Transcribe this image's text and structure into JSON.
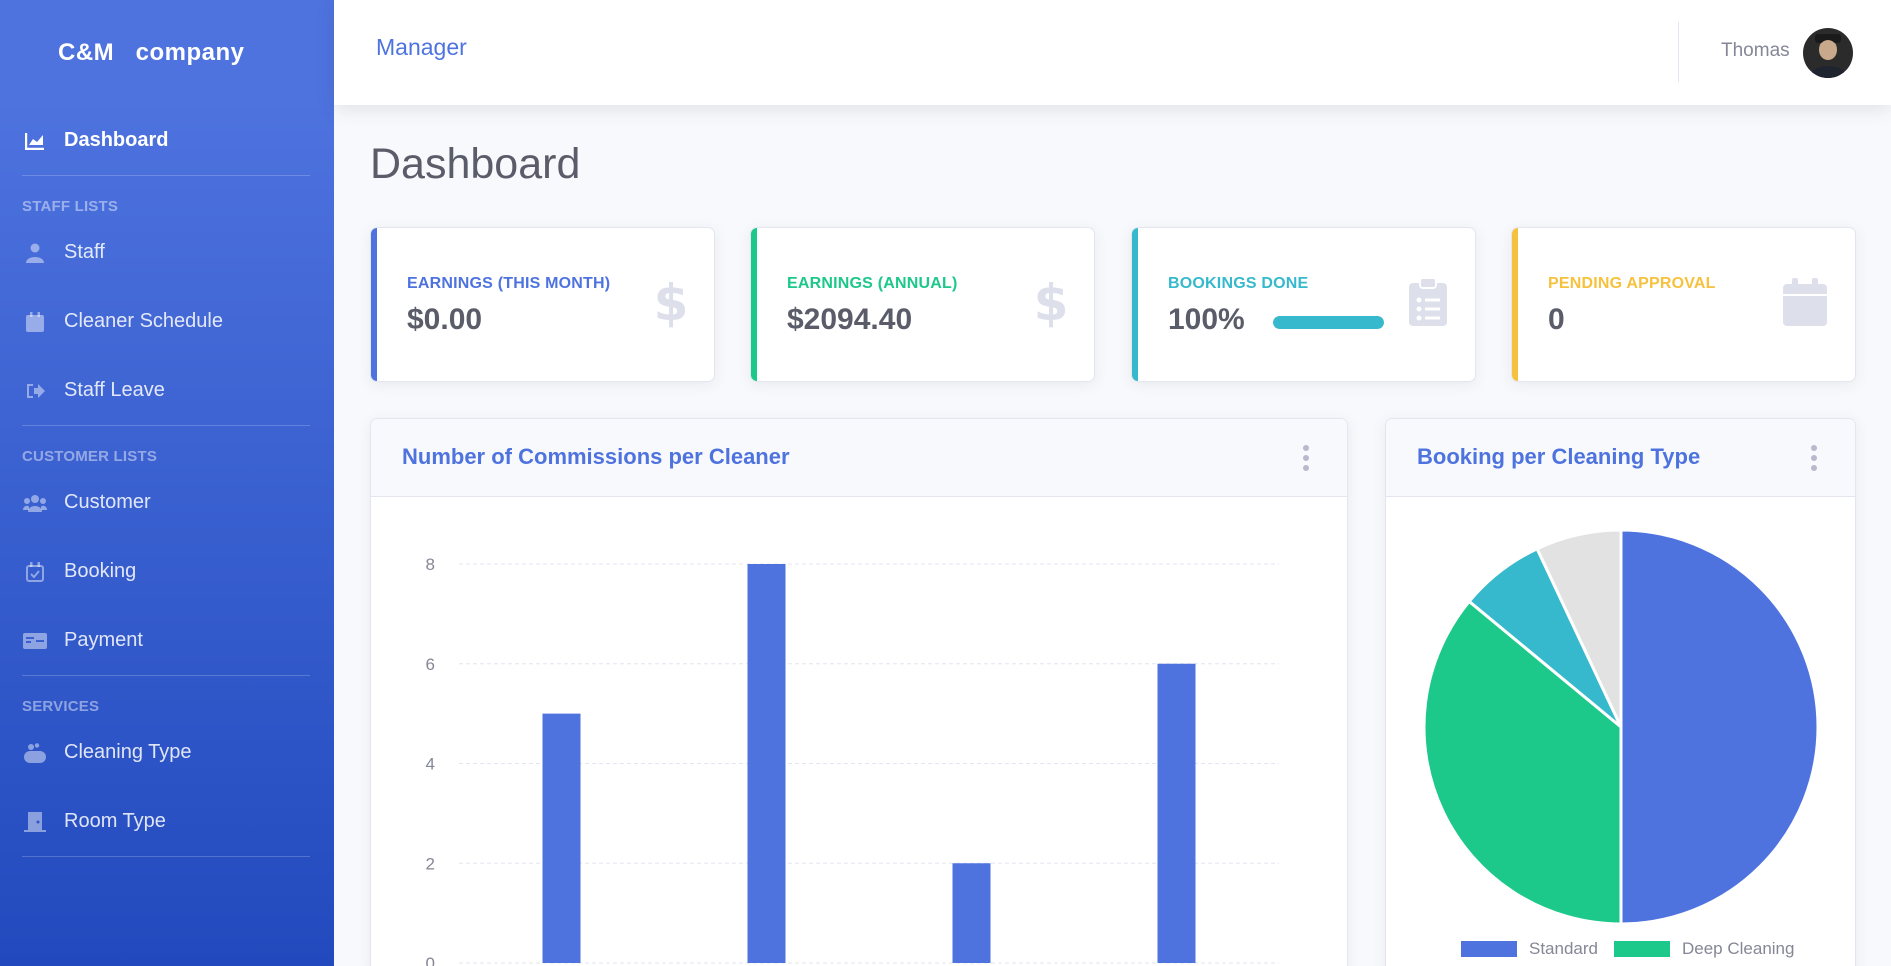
{
  "brand": {
    "name": "C&M   company"
  },
  "sidebar": {
    "dashboard": "Dashboard",
    "sections": [
      {
        "heading": "STAFF LISTS",
        "items": [
          {
            "label": "Staff",
            "icon": "user-tie-icon"
          },
          {
            "label": "Cleaner Schedule",
            "icon": "calendar-icon"
          },
          {
            "label": "Staff Leave",
            "icon": "sign-out-icon"
          }
        ]
      },
      {
        "heading": "CUSTOMER LISTS",
        "items": [
          {
            "label": "Customer",
            "icon": "users-icon"
          },
          {
            "label": "Booking",
            "icon": "calendar-check-icon"
          },
          {
            "label": "Payment",
            "icon": "money-check-icon"
          }
        ]
      },
      {
        "heading": "SERVICES",
        "items": [
          {
            "label": "Cleaning Type",
            "icon": "soap-icon"
          },
          {
            "label": "Room Type",
            "icon": "door-icon"
          }
        ]
      }
    ]
  },
  "topbar": {
    "role": "Manager",
    "user": "Thomas"
  },
  "page": {
    "title": "Dashboard"
  },
  "cards": [
    {
      "label": "EARNINGS (THIS MONTH)",
      "value": "$0.00",
      "color": "#4e73df",
      "icon": "dollar-icon"
    },
    {
      "label": "EARNINGS (ANNUAL)",
      "value": "$2094.40",
      "color": "#1cc88a",
      "icon": "dollar-icon"
    },
    {
      "label": "BOOKINGS DONE",
      "value": "100%",
      "color": "#36b9cc",
      "icon": "clipboard-list-icon",
      "progress": 1.0
    },
    {
      "label": "PENDING APPROVAL",
      "value": "0",
      "color": "#f6c23e",
      "icon": "calendar-icon"
    }
  ],
  "charts": {
    "bar_title": "Number of Commissions per Cleaner",
    "pie_title": "Booking per Cleaning Type"
  },
  "chart_data": [
    {
      "type": "bar",
      "title": "Number of Commissions per Cleaner",
      "values": [
        5,
        8,
        2,
        6
      ],
      "ylim": [
        0,
        8
      ],
      "yticks": [
        0,
        2,
        4,
        6,
        8
      ],
      "grid": true,
      "color": "#4e73df"
    },
    {
      "type": "pie",
      "title": "Booking per Cleaning Type",
      "slices": [
        {
          "label": "Standard",
          "value": 50,
          "color": "#4e73df"
        },
        {
          "label": "Deep Cleaning",
          "value": 36,
          "color": "#1cc88a"
        },
        {
          "value": 7,
          "color": "#36b9cc"
        },
        {
          "value": 7,
          "color": "#e2e2e2"
        }
      ],
      "legend": "bottom"
    }
  ]
}
